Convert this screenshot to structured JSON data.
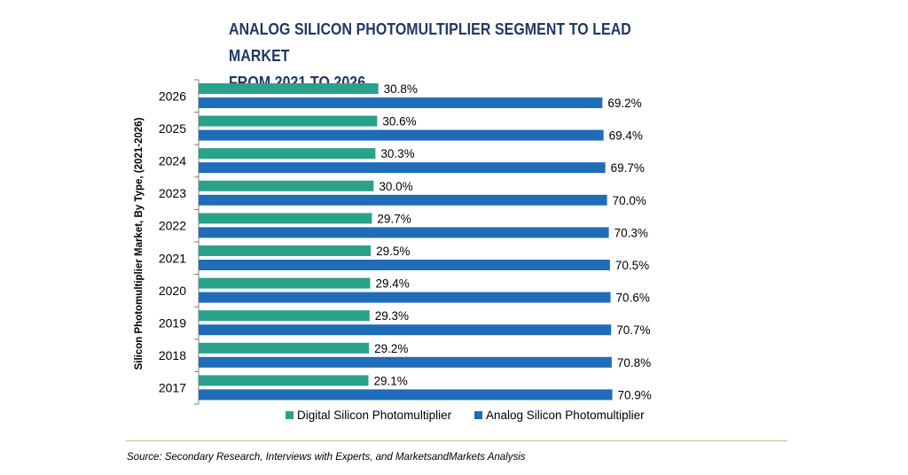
{
  "title_line1": "ANALOG SILICON PHOTOMULTIPLIER SEGMENT TO LEAD MARKET",
  "title_line2": "FROM 2021 TO 2026",
  "source": "Source: Secondary Research, Interviews with Experts, and MarketsandMarkets Analysis",
  "colors": {
    "digital": "#2aa18a",
    "analog": "#1f6cb8",
    "divider": "#c9b680"
  },
  "chart_data": {
    "type": "bar",
    "orientation": "horizontal",
    "ylabel": "Silicon Photomultiplier Market, By Type, (2021-2026)",
    "categories": [
      "2026",
      "2025",
      "2024",
      "2023",
      "2022",
      "2021",
      "2020",
      "2019",
      "2018",
      "2017"
    ],
    "series": [
      {
        "name": "Digital Silicon Photomultiplier",
        "values": [
          30.8,
          30.6,
          30.3,
          30.0,
          29.7,
          29.5,
          29.4,
          29.3,
          29.2,
          29.1
        ],
        "labels": [
          "30.8%",
          "30.6%",
          "30.3%",
          "30.0%",
          "29.7%",
          "29.5%",
          "29.4%",
          "29.3%",
          "29.2%",
          "29.1%"
        ]
      },
      {
        "name": "Analog Silicon Photomultiplier",
        "values": [
          69.2,
          69.4,
          69.7,
          70.0,
          70.3,
          70.5,
          70.6,
          70.7,
          70.8,
          70.9
        ],
        "labels": [
          "69.2%",
          "69.4%",
          "69.7%",
          "70.0%",
          "70.3%",
          "70.5%",
          "70.6%",
          "70.7%",
          "70.8%",
          "70.9%"
        ]
      }
    ],
    "xlim": [
      0,
      100
    ],
    "legend_position": "bottom",
    "grid": false
  }
}
